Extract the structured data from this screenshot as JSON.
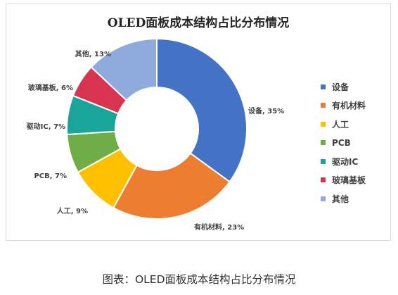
{
  "chart_data": {
    "type": "pie",
    "title": "OLED面板成本结构占比分布情况",
    "categories": [
      "设备",
      "有机材料",
      "人工",
      "PCB",
      "驱动IC",
      "玻璃基板",
      "其他"
    ],
    "values": [
      35,
      23,
      9,
      7,
      7,
      6,
      13
    ],
    "value_unit": "%",
    "data_labels": [
      "设备, 35%",
      "有机材料, 23%",
      "人工, 9%",
      "PCB, 7%",
      "驱动IC, 7%",
      "玻璃基板, 6%",
      "其他, 13%"
    ],
    "colors": [
      "#4472c4",
      "#ed7d31",
      "#ffc000",
      "#70ad47",
      "#1aa59a",
      "#d8344f",
      "#8faadc"
    ],
    "donut": true,
    "legend_position": "right"
  },
  "caption": "图表：OLED面板成本结构占比分布情况"
}
